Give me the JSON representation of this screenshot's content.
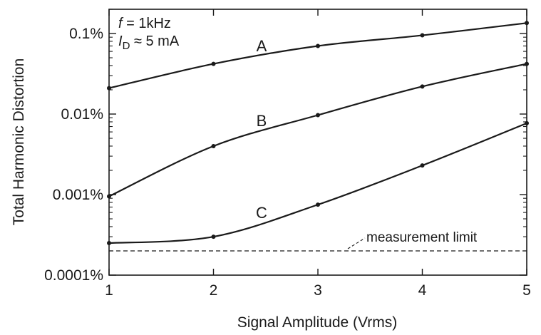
{
  "chart_data": {
    "type": "line",
    "xlabel": "Signal Amplitude  (Vrms)",
    "ylabel": "Total Harmonic Distortion",
    "x": [
      1,
      2,
      3,
      4,
      5
    ],
    "xlim": [
      1,
      5
    ],
    "ylim_percent": [
      0.0001,
      0.2
    ],
    "yscale": "log",
    "x_tick_labels": [
      "1",
      "2",
      "3",
      "4",
      "5"
    ],
    "y_ticks": [
      0.0001,
      0.001,
      0.01,
      0.1
    ],
    "y_tick_labels": [
      "0.0001%",
      "0.001%",
      "0.01%",
      "0.1%"
    ],
    "series": [
      {
        "name": "A",
        "values_percent": [
          0.021,
          0.042,
          0.07,
          0.095,
          0.135
        ]
      },
      {
        "name": "B",
        "values_percent": [
          0.00095,
          0.004,
          0.0097,
          0.022,
          0.042
        ]
      },
      {
        "name": "C",
        "values_percent": [
          0.00025,
          0.0003,
          0.00075,
          0.0023,
          0.0077
        ]
      }
    ],
    "reference_line": {
      "label": "measurement limit",
      "value_percent": 0.0002,
      "style": "dashed"
    },
    "conditions": {
      "line1_italic": "f",
      "line1_rest": " = 1kHz",
      "line2_italic": "I",
      "line2_sub": "D",
      "line2_rest": " ≈ 5 mA"
    },
    "grid": false,
    "colors": {
      "line": "#1a1a1a",
      "background": "#ffffff"
    }
  }
}
